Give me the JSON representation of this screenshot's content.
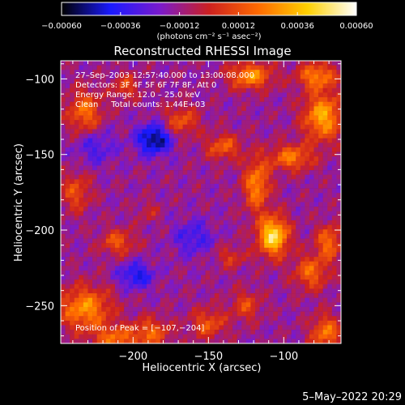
{
  "chart_data": {
    "type": "heatmap",
    "title": "Reconstructed RHESSI Image",
    "xlabel": "Heliocentric X (arcsec)",
    "ylabel": "Heliocentric Y (arcsec)",
    "xlim": [
      -248,
      -62
    ],
    "ylim": [
      -275,
      -88
    ],
    "x_ticks": [
      -200,
      -150,
      -100
    ],
    "x_tick_labels": [
      "−200",
      "−150",
      "−100"
    ],
    "y_ticks": [
      -100,
      -150,
      -200,
      -250
    ],
    "y_tick_labels": [
      "−100",
      "−150",
      "−200",
      "−250"
    ],
    "colorbar": {
      "range": [
        -0.0006,
        0.0006
      ],
      "ticks": [
        -0.0006,
        -0.00036,
        -0.00012,
        0.00012,
        0.00036,
        0.0006
      ],
      "tick_labels": [
        "−0.00060",
        "−0.00036",
        "−0.00012",
        "0.00012",
        "0.00036",
        "0.00060"
      ],
      "units": "(photons cm⁻² s⁻¹ asec⁻²)",
      "colormap": [
        "#000000",
        "#1a1aff",
        "#7a1acc",
        "#cc2020",
        "#ff6a00",
        "#ffd000",
        "#ffffff"
      ]
    },
    "annotations": [
      "27–Sep–2003 12:57:40.000 to 13:00:08.000",
      "Detectors: 3F 4F 5F 6F 7F 8F, Att 0",
      "Energy Range: 12.0 – 25.0 keV",
      "Clean     Total counts: 1.44E+03"
    ],
    "peak_label": "Position of Peak = [−107,−204]",
    "peak": {
      "x": -107,
      "y": -204
    },
    "bright_regions": [
      {
        "x": -107,
        "y": -204,
        "sx": 7,
        "sy": 9,
        "a": 0.0006
      },
      {
        "x": -118,
        "y": -170,
        "sx": 6,
        "sy": 12,
        "a": 0.00038
      },
      {
        "x": -95,
        "y": -152,
        "sx": 10,
        "sy": 6,
        "a": 0.00034
      },
      {
        "x": -140,
        "y": -145,
        "sx": 8,
        "sy": 6,
        "a": 0.00028
      },
      {
        "x": -74,
        "y": -125,
        "sx": 9,
        "sy": 11,
        "a": 0.00045
      },
      {
        "x": -122,
        "y": -98,
        "sx": 10,
        "sy": 6,
        "a": 0.0004
      },
      {
        "x": -78,
        "y": -98,
        "sx": 9,
        "sy": 6,
        "a": 0.00036
      },
      {
        "x": -168,
        "y": -128,
        "sx": 8,
        "sy": 7,
        "a": 0.00026
      },
      {
        "x": -232,
        "y": -122,
        "sx": 8,
        "sy": 10,
        "a": 0.00032
      },
      {
        "x": -205,
        "y": -105,
        "sx": 6,
        "sy": 6,
        "a": 0.00022
      },
      {
        "x": -238,
        "y": -175,
        "sx": 7,
        "sy": 9,
        "a": 0.00024
      },
      {
        "x": -232,
        "y": -252,
        "sx": 12,
        "sy": 10,
        "a": 0.0004
      },
      {
        "x": -212,
        "y": -272,
        "sx": 10,
        "sy": 6,
        "a": 0.0003
      },
      {
        "x": -188,
        "y": -268,
        "sx": 9,
        "sy": 7,
        "a": 0.00028
      },
      {
        "x": -150,
        "y": -262,
        "sx": 8,
        "sy": 7,
        "a": 0.00026
      },
      {
        "x": -125,
        "y": -250,
        "sx": 7,
        "sy": 7,
        "a": 0.00022
      },
      {
        "x": -82,
        "y": -228,
        "sx": 8,
        "sy": 8,
        "a": 0.0003
      },
      {
        "x": -70,
        "y": -208,
        "sx": 6,
        "sy": 8,
        "a": 0.00032
      },
      {
        "x": -72,
        "y": -268,
        "sx": 7,
        "sy": 8,
        "a": 0.00034
      },
      {
        "x": -210,
        "y": -208,
        "sx": 8,
        "sy": 6,
        "a": 0.00026
      },
      {
        "x": -135,
        "y": -218,
        "sx": 7,
        "sy": 5,
        "a": 0.00018
      },
      {
        "x": -190,
        "y": -188,
        "sx": 5,
        "sy": 5,
        "a": 0.00012
      }
    ],
    "dark_regions": [
      {
        "x": -186,
        "y": -140,
        "sx": 8,
        "sy": 7,
        "a": -0.00042
      },
      {
        "x": -198,
        "y": -230,
        "sx": 8,
        "sy": 6,
        "a": -0.00028
      },
      {
        "x": -160,
        "y": -205,
        "sx": 9,
        "sy": 8,
        "a": -0.0002
      },
      {
        "x": -225,
        "y": -145,
        "sx": 9,
        "sy": 8,
        "a": -0.00018
      }
    ]
  },
  "footer": {
    "date": "5–May–2022 20:29"
  }
}
